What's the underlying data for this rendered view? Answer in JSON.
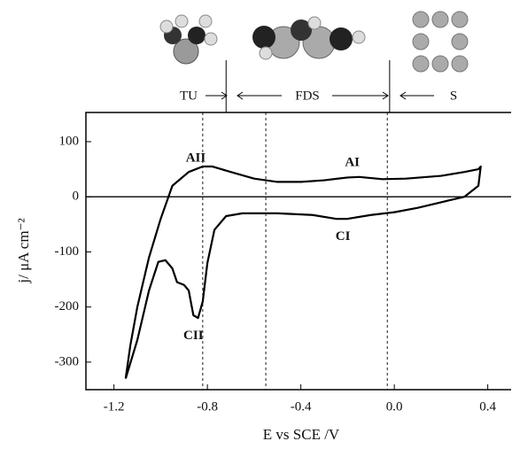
{
  "chart_data": {
    "type": "line",
    "x_label": "E vs SCE /V",
    "y_label": "j/ μA cm⁻²",
    "xlim": [
      -1.32,
      0.5
    ],
    "ylim": [
      -350,
      153
    ],
    "xticks": [
      -1.2,
      -0.8,
      -0.4,
      {
        "value": 0,
        "label": "0.0"
      },
      0.4
    ],
    "yticks": [
      100,
      0,
      -100,
      -200,
      -300
    ],
    "vlines": [
      -0.82,
      -0.55,
      -0.03
    ],
    "region_bounds": [
      -0.72,
      -0.02
    ],
    "regions": [
      "TU",
      "FDS",
      "S"
    ],
    "annotations": [
      {
        "text": "AII",
        "x": -0.85,
        "y": 69
      },
      {
        "text": "AI",
        "x": -0.18,
        "y": 61
      },
      {
        "text": "CI",
        "x": -0.22,
        "y": -73
      },
      {
        "text": "CII",
        "x": -0.86,
        "y": -253
      }
    ],
    "series": [
      {
        "color": "#000000",
        "x": [
          -1.15,
          -1.13,
          -1.1,
          -1.05,
          -1.0,
          -0.95,
          -0.88,
          -0.82,
          -0.78,
          -0.7,
          -0.6,
          -0.5,
          -0.4,
          -0.3,
          -0.2,
          -0.15,
          -0.05,
          0.05,
          0.2,
          0.3,
          0.36,
          0.37,
          0.36,
          0.3,
          0.2,
          0.1,
          0.0,
          -0.1,
          -0.2,
          -0.25,
          -0.35,
          -0.5,
          -0.65,
          -0.72,
          -0.77,
          -0.8,
          -0.82,
          -0.84,
          -0.86,
          -0.88,
          -0.9,
          -0.93,
          -0.95,
          -0.98,
          -1.01,
          -1.05,
          -1.1,
          -1.15
        ],
        "values": [
          -330,
          -270,
          -200,
          -110,
          -40,
          20,
          45,
          55,
          55,
          45,
          33,
          27,
          27,
          30,
          35,
          36,
          32,
          33,
          38,
          45,
          50,
          55,
          20,
          0,
          -10,
          -20,
          -28,
          -33,
          -40,
          -40,
          -33,
          -30,
          -30,
          -35,
          -60,
          -120,
          -190,
          -220,
          -215,
          -170,
          -160,
          -155,
          -130,
          -115,
          -118,
          -170,
          -260,
          -330
        ]
      }
    ]
  }
}
